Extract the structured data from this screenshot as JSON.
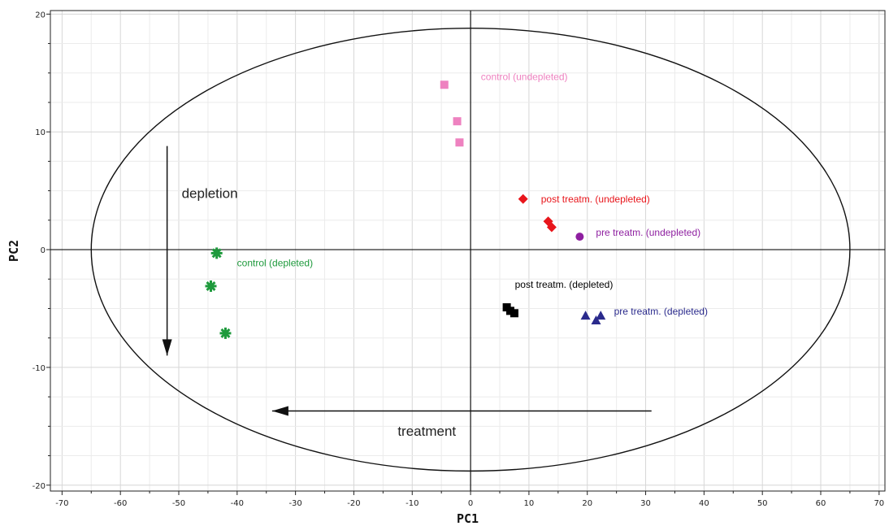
{
  "chart_data": {
    "type": "scatter",
    "xlabel": "PC1",
    "ylabel": "PC2",
    "xlim": [
      -72,
      71
    ],
    "ylim": [
      -20.5,
      20.3
    ],
    "x_ticks": [
      -70,
      -60,
      -50,
      -40,
      -30,
      -20,
      -10,
      0,
      10,
      20,
      30,
      40,
      50,
      60,
      70
    ],
    "y_ticks": [
      20,
      10,
      0,
      -10,
      -20
    ],
    "grid": true,
    "reference_ellipse": {
      "center": [
        0,
        0
      ],
      "radius_x": 65,
      "radius_y": 18.8
    },
    "series": [
      {
        "name": "control (undepleted)",
        "marker": "square",
        "color": "#ee82c0",
        "points": [
          [
            -4.5,
            14
          ],
          [
            -2.3,
            10.9
          ],
          [
            -1.9,
            9.1
          ]
        ]
      },
      {
        "name": "post treatm. (undepleted)",
        "marker": "diamond",
        "color": "#e8151b",
        "points": [
          [
            9,
            4.3
          ],
          [
            13.3,
            2.4
          ],
          [
            13.9,
            1.9
          ]
        ]
      },
      {
        "name": "pre treatm. (undepleted)",
        "marker": "circle",
        "color": "#8e1fa0",
        "points": [
          [
            18.7,
            1.1
          ]
        ]
      },
      {
        "name": "control (depleted)",
        "marker": "asterisk",
        "color": "#1e9a3c",
        "points": [
          [
            -43.5,
            -0.3
          ],
          [
            -44.5,
            -3.1
          ],
          [
            -42,
            -7.1
          ]
        ]
      },
      {
        "name": "post treatm. (depleted)",
        "marker": "square",
        "color": "#000000",
        "points": [
          [
            6.2,
            -4.9
          ],
          [
            6.8,
            -5.2
          ],
          [
            7.5,
            -5.4
          ]
        ]
      },
      {
        "name": "pre treatm. (depleted)",
        "marker": "triangle",
        "color": "#2a2a8c",
        "points": [
          [
            19.7,
            -5.6
          ],
          [
            21.5,
            -6
          ],
          [
            22.3,
            -5.6
          ]
        ]
      }
    ],
    "annotations": [
      {
        "text": "depletion",
        "arrow_from": [
          -52,
          8.8
        ],
        "arrow_to": [
          -52,
          -9
        ],
        "text_at": [
          -49.5,
          4.4
        ]
      },
      {
        "text": "treatment",
        "arrow_from": [
          31,
          -13.7
        ],
        "arrow_to": [
          -34,
          -13.7
        ],
        "text_at": [
          -12.5,
          -15.8
        ]
      }
    ]
  }
}
